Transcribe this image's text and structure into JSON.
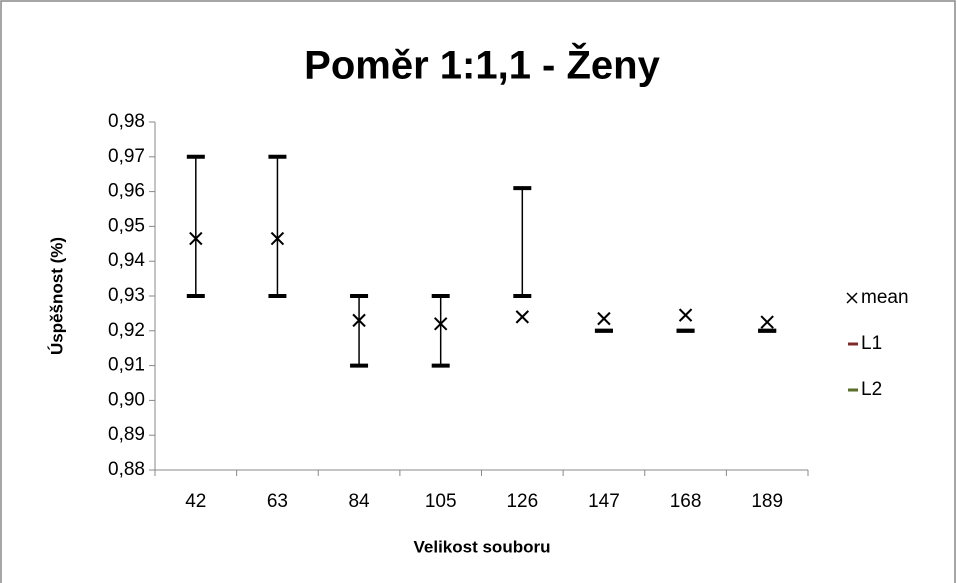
{
  "chart_data": {
    "type": "highlow",
    "title": "Poměr 1:1,1 - Ženy",
    "x_label": "Velikost souboru",
    "y_label": "Úspěšnost (%)",
    "categories": [
      "42",
      "63",
      "84",
      "105",
      "126",
      "147",
      "168",
      "189"
    ],
    "series": [
      {
        "name": "mean",
        "color": "#000000",
        "marker": "x",
        "values": [
          0.9465,
          0.9465,
          0.923,
          0.922,
          0.924,
          0.9235,
          0.9245,
          0.9225
        ]
      },
      {
        "name": "L1",
        "color": "#7f2a2a",
        "marker": "dash",
        "values": [
          0.97,
          0.97,
          0.93,
          0.93,
          0.961,
          0.92,
          0.92,
          0.92
        ]
      },
      {
        "name": "L2",
        "color": "#5a6e2a",
        "marker": "dash",
        "values": [
          0.93,
          0.93,
          0.91,
          0.91,
          0.93,
          0.92,
          0.92,
          0.92
        ]
      }
    ],
    "errorbar_color": "#000000",
    "ylim": [
      0.88,
      0.98
    ],
    "yticks": [
      {
        "value": 0.88,
        "label": "0,88"
      },
      {
        "value": 0.89,
        "label": "0,89"
      },
      {
        "value": 0.9,
        "label": "0,90"
      },
      {
        "value": 0.91,
        "label": "0,91"
      },
      {
        "value": 0.92,
        "label": "0,92"
      },
      {
        "value": 0.93,
        "label": "0,93"
      },
      {
        "value": 0.94,
        "label": "0,94"
      },
      {
        "value": 0.95,
        "label": "0,95"
      },
      {
        "value": 0.96,
        "label": "0,96"
      },
      {
        "value": 0.97,
        "label": "0,97"
      },
      {
        "value": 0.98,
        "label": "0,98"
      }
    ],
    "grid": false,
    "legend": "right"
  }
}
